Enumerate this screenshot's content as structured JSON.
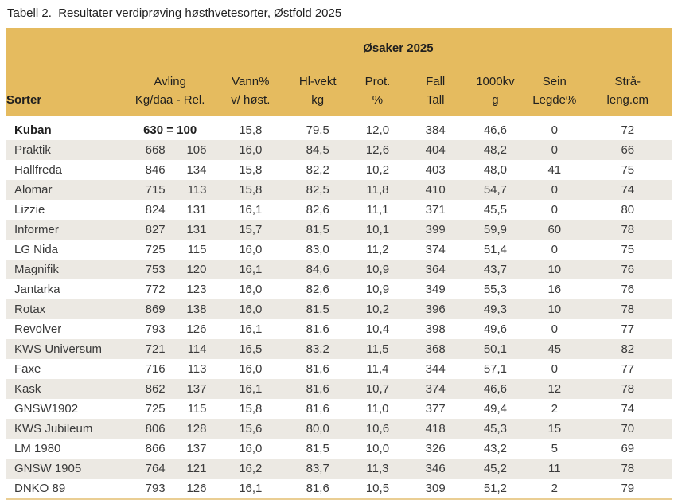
{
  "colors": {
    "header_gold": "#E5BB5F",
    "row_stripe": "#ECE9E3",
    "bottom_rule_gold": "#EACE93",
    "text_dark": "#262626"
  },
  "chart_data": {
    "type": "table",
    "title": "Tabell 2.  Resultater verdiprøving høsthvetesorter, Østfold 2025",
    "group_header": "Øsaker 2025",
    "columns": [
      {
        "line1": "Sorter",
        "line2": ""
      },
      {
        "line1": "Avling",
        "line2": "Kg/daa - Rel."
      },
      {
        "line1": "Vann%",
        "line2": "v/ høst."
      },
      {
        "line1": "Hl-vekt",
        "line2": "kg"
      },
      {
        "line1": "Prot.",
        "line2": "%"
      },
      {
        "line1": "Fall",
        "line2": "Tall"
      },
      {
        "line1": "1000kv",
        "line2": "g"
      },
      {
        "line1": "Sein",
        "line2": "Legde%"
      },
      {
        "line1": "Strå-",
        "line2": "leng.cm"
      }
    ],
    "rows": [
      {
        "sort": "Kuban",
        "avling_combined": "630 = 100",
        "bold": true,
        "vann": "15,8",
        "hlvekt": "79,5",
        "prot": "12,0",
        "falltall": "384",
        "kv1000": "46,6",
        "sein_legde": "0",
        "straleng": "72"
      },
      {
        "sort": "Praktik",
        "kgdaa": "668",
        "rel": "106",
        "vann": "16,0",
        "hlvekt": "84,5",
        "prot": "12,6",
        "falltall": "404",
        "kv1000": "48,2",
        "sein_legde": "0",
        "straleng": "66"
      },
      {
        "sort": "Hallfreda",
        "kgdaa": "846",
        "rel": "134",
        "vann": "15,8",
        "hlvekt": "82,2",
        "prot": "10,2",
        "falltall": "403",
        "kv1000": "48,0",
        "sein_legde": "41",
        "straleng": "75"
      },
      {
        "sort": "Alomar",
        "kgdaa": "715",
        "rel": "113",
        "vann": "15,8",
        "hlvekt": "82,5",
        "prot": "11,8",
        "falltall": "410",
        "kv1000": "54,7",
        "sein_legde": "0",
        "straleng": "74"
      },
      {
        "sort": "Lizzie",
        "kgdaa": "824",
        "rel": "131",
        "vann": "16,1",
        "hlvekt": "82,6",
        "prot": "11,1",
        "falltall": "371",
        "kv1000": "45,5",
        "sein_legde": "0",
        "straleng": "80"
      },
      {
        "sort": "Informer",
        "kgdaa": "827",
        "rel": "131",
        "vann": "15,7",
        "hlvekt": "81,5",
        "prot": "10,1",
        "falltall": "399",
        "kv1000": "59,9",
        "sein_legde": "60",
        "straleng": "78"
      },
      {
        "sort": "LG Nida",
        "kgdaa": "725",
        "rel": "115",
        "vann": "16,0",
        "hlvekt": "83,0",
        "prot": "11,2",
        "falltall": "374",
        "kv1000": "51,4",
        "sein_legde": "0",
        "straleng": "75"
      },
      {
        "sort": "Magnifik",
        "kgdaa": "753",
        "rel": "120",
        "vann": "16,1",
        "hlvekt": "84,6",
        "prot": "10,9",
        "falltall": "364",
        "kv1000": "43,7",
        "sein_legde": "10",
        "straleng": "76"
      },
      {
        "sort": "Jantarka",
        "kgdaa": "772",
        "rel": "123",
        "vann": "16,0",
        "hlvekt": "82,6",
        "prot": "10,9",
        "falltall": "349",
        "kv1000": "55,3",
        "sein_legde": "16",
        "straleng": "76"
      },
      {
        "sort": "Rotax",
        "kgdaa": "869",
        "rel": "138",
        "vann": "16,0",
        "hlvekt": "81,5",
        "prot": "10,2",
        "falltall": "396",
        "kv1000": "49,3",
        "sein_legde": "10",
        "straleng": "78"
      },
      {
        "sort": "Revolver",
        "kgdaa": "793",
        "rel": "126",
        "vann": "16,1",
        "hlvekt": "81,6",
        "prot": "10,4",
        "falltall": "398",
        "kv1000": "49,6",
        "sein_legde": "0",
        "straleng": "77"
      },
      {
        "sort": "KWS Universum",
        "kgdaa": "721",
        "rel": "114",
        "vann": "16,5",
        "hlvekt": "83,2",
        "prot": "11,5",
        "falltall": "368",
        "kv1000": "50,1",
        "sein_legde": "45",
        "straleng": "82"
      },
      {
        "sort": "Faxe",
        "kgdaa": "716",
        "rel": "113",
        "vann": "16,0",
        "hlvekt": "81,6",
        "prot": "11,4",
        "falltall": "344",
        "kv1000": "57,1",
        "sein_legde": "0",
        "straleng": "77"
      },
      {
        "sort": "Kask",
        "kgdaa": "862",
        "rel": "137",
        "vann": "16,1",
        "hlvekt": "81,6",
        "prot": "10,7",
        "falltall": "374",
        "kv1000": "46,6",
        "sein_legde": "12",
        "straleng": "78"
      },
      {
        "sort": "GNSW1902",
        "kgdaa": "725",
        "rel": "115",
        "vann": "15,8",
        "hlvekt": "81,6",
        "prot": "11,0",
        "falltall": "377",
        "kv1000": "49,4",
        "sein_legde": "2",
        "straleng": "74"
      },
      {
        "sort": "KWS Jubileum",
        "kgdaa": "806",
        "rel": "128",
        "vann": "15,6",
        "hlvekt": "80,0",
        "prot": "10,6",
        "falltall": "418",
        "kv1000": "45,3",
        "sein_legde": "15",
        "straleng": "70"
      },
      {
        "sort": "LM 1980",
        "kgdaa": "866",
        "rel": "137",
        "vann": "16,0",
        "hlvekt": "81,5",
        "prot": "10,0",
        "falltall": "326",
        "kv1000": "43,2",
        "sein_legde": "5",
        "straleng": "69"
      },
      {
        "sort": "GNSW 1905",
        "kgdaa": "764",
        "rel": "121",
        "vann": "16,2",
        "hlvekt": "83,7",
        "prot": "11,3",
        "falltall": "346",
        "kv1000": "45,2",
        "sein_legde": "11",
        "straleng": "78"
      },
      {
        "sort": "DNKO 89",
        "kgdaa": "793",
        "rel": "126",
        "vann": "16,1",
        "hlvekt": "81,6",
        "prot": "10,5",
        "falltall": "309",
        "kv1000": "51,2",
        "sein_legde": "2",
        "straleng": "79"
      }
    ]
  }
}
